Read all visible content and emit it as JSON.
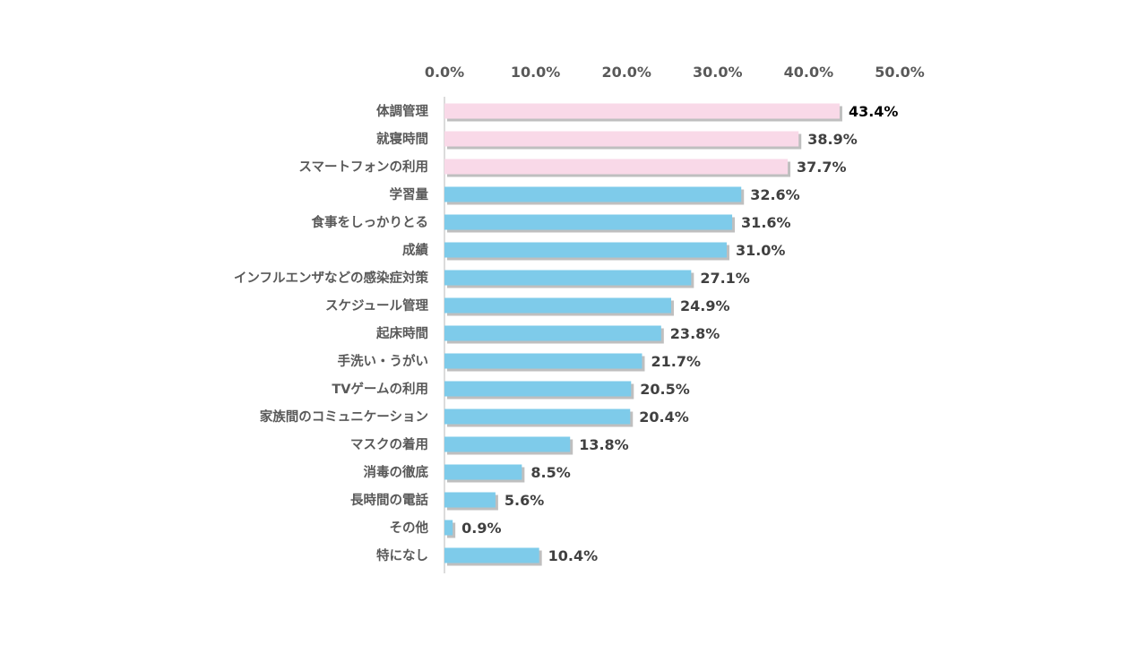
{
  "chart_data": {
    "type": "bar",
    "orientation": "horizontal",
    "title": "",
    "xlabel": "",
    "ylabel": "",
    "xlim": [
      0,
      50
    ],
    "x_ticks": [
      "0.0%",
      "10.0%",
      "20.0%",
      "30.0%",
      "40.0%",
      "50.0%"
    ],
    "x_axis_position": "top",
    "grid": false,
    "legend": null,
    "colors": {
      "highlight": "#f9d9e8",
      "default": "#7ecbea",
      "shadow": "#bfbfbf"
    },
    "categories": [
      "体調管理",
      "就寝時間",
      "スマートフォンの利用",
      "学習量",
      "食事をしっかりとる",
      "成績",
      "インフルエンザなどの感染症対策",
      "スケジュール管理",
      "起床時間",
      "手洗い・うがい",
      "TVゲームの利用",
      "家族間のコミュニケーション",
      "マスクの着用",
      "消毒の徹底",
      "長時間の電話",
      "その他",
      "特になし"
    ],
    "values": [
      43.4,
      38.9,
      37.7,
      32.6,
      31.6,
      31.0,
      27.1,
      24.9,
      23.8,
      21.7,
      20.5,
      20.4,
      13.8,
      8.5,
      5.6,
      0.9,
      10.4
    ],
    "value_labels": [
      "43.4%",
      "38.9%",
      "37.7%",
      "32.6%",
      "31.6%",
      "31.0%",
      "27.1%",
      "24.9%",
      "23.8%",
      "21.7%",
      "20.5%",
      "20.4%",
      "13.8%",
      "8.5%",
      "5.6%",
      "0.9%",
      "10.4%"
    ],
    "highlighted": [
      true,
      true,
      true,
      false,
      false,
      false,
      false,
      false,
      false,
      false,
      false,
      false,
      false,
      false,
      false,
      false,
      false
    ]
  }
}
